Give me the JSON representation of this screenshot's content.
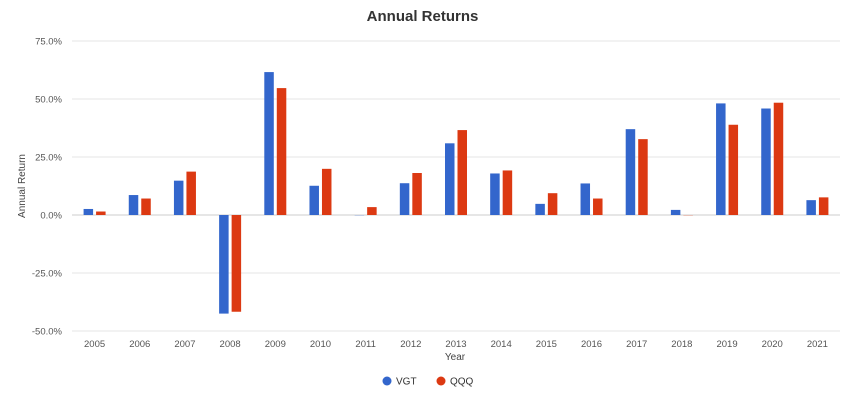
{
  "chart_data": {
    "type": "bar",
    "title": "Annual Returns",
    "xlabel": "Year",
    "ylabel": "Annual Return",
    "categories": [
      "2005",
      "2006",
      "2007",
      "2008",
      "2009",
      "2010",
      "2011",
      "2012",
      "2013",
      "2014",
      "2015",
      "2016",
      "2017",
      "2018",
      "2019",
      "2020",
      "2021"
    ],
    "series": [
      {
        "name": "VGT",
        "color": "#3366cc",
        "values": [
          2.6,
          8.6,
          14.8,
          -42.5,
          61.6,
          12.6,
          -0.1,
          13.7,
          30.9,
          17.9,
          4.8,
          13.6,
          37.0,
          2.2,
          48.1,
          45.9,
          6.4
        ]
      },
      {
        "name": "QQQ",
        "color": "#dc3912",
        "values": [
          1.5,
          7.1,
          18.7,
          -41.7,
          54.7,
          19.9,
          3.4,
          18.1,
          36.6,
          19.2,
          9.4,
          7.1,
          32.7,
          -0.1,
          38.9,
          48.4,
          7.6
        ]
      }
    ],
    "ylim": [
      -50,
      75
    ],
    "yticks": [
      "75.0%",
      "50.0%",
      "25.0%",
      "0.0%",
      "-25.0%",
      "-50.0%"
    ],
    "ytick_values": [
      75,
      50,
      25,
      0,
      -25,
      -50
    ],
    "grid": true,
    "legend_position": "bottom"
  }
}
